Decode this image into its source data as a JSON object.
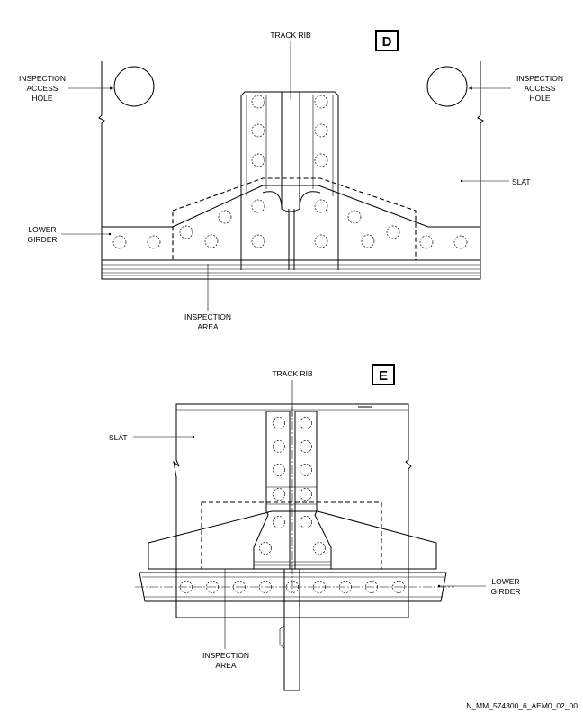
{
  "views": [
    {
      "letter": "D",
      "labels": {
        "track_rib": "TRACK RIB",
        "hole_left": [
          "INSPECTION",
          "ACCESS",
          "HOLE"
        ],
        "hole_right": [
          "INSPECTION",
          "ACCESS",
          "HOLE"
        ],
        "slat": "SLAT",
        "lower_girder": [
          "LOWER",
          "GIRDER"
        ],
        "inspection_area": [
          "INSPECTION",
          "AREA"
        ]
      }
    },
    {
      "letter": "E",
      "labels": {
        "track_rib": "TRACK RIB",
        "slat": "SLAT",
        "lower_girder": [
          "LOWER",
          "GIRDER"
        ],
        "inspection_area": [
          "INSPECTION",
          "AREA"
        ]
      }
    }
  ],
  "figure_id": "N_MM_574300_6_AEM0_02_00"
}
